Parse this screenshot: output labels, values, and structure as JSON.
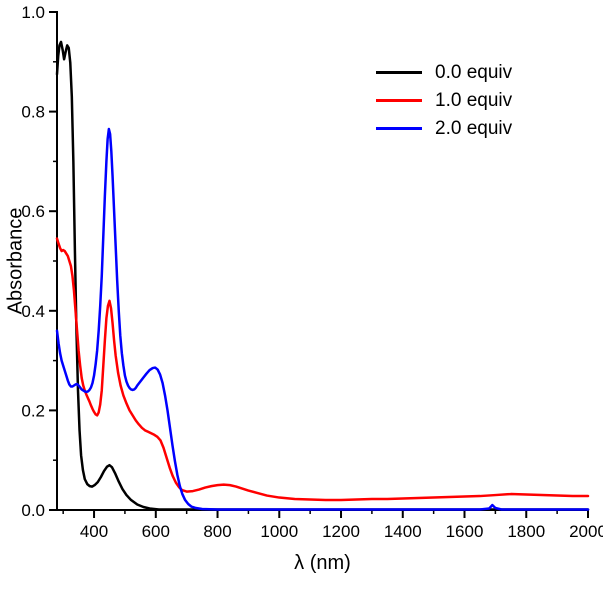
{
  "chart_data": {
    "type": "line",
    "title": "",
    "xlabel": "λ (nm)",
    "ylabel": "Absorbance",
    "xlim": [
      280,
      2000
    ],
    "ylim": [
      0.0,
      1.0
    ],
    "grid": false,
    "legend_position": "upper right",
    "x_ticks": {
      "values": [
        400,
        600,
        800,
        1000,
        1200,
        1400,
        1600,
        1800,
        2000
      ],
      "labels": [
        "400",
        "600",
        "800",
        "1000",
        "1200",
        "1400",
        "1600",
        "1800",
        "2000"
      ]
    },
    "x_minor_ticks": [
      300,
      500,
      700,
      900,
      1100,
      1300,
      1500,
      1700,
      1900
    ],
    "y_ticks": {
      "values": [
        0.0,
        0.2,
        0.4,
        0.6,
        0.8,
        1.0
      ],
      "labels": [
        "0.0",
        "0.2",
        "0.4",
        "0.6",
        "0.8",
        "1.0"
      ]
    },
    "y_minor_ticks": [
      0.1,
      0.3,
      0.5,
      0.7,
      0.9
    ],
    "series": [
      {
        "name": "0.0 equiv",
        "color": "#000000",
        "points": [
          [
            280,
            0.875
          ],
          [
            284,
            0.912
          ],
          [
            288,
            0.933
          ],
          [
            293,
            0.94
          ],
          [
            298,
            0.925
          ],
          [
            303,
            0.905
          ],
          [
            308,
            0.92
          ],
          [
            313,
            0.933
          ],
          [
            318,
            0.928
          ],
          [
            323,
            0.898
          ],
          [
            328,
            0.83
          ],
          [
            333,
            0.7
          ],
          [
            338,
            0.52
          ],
          [
            343,
            0.36
          ],
          [
            348,
            0.24
          ],
          [
            353,
            0.16
          ],
          [
            358,
            0.11
          ],
          [
            364,
            0.08
          ],
          [
            370,
            0.062
          ],
          [
            378,
            0.052
          ],
          [
            386,
            0.048
          ],
          [
            394,
            0.047
          ],
          [
            402,
            0.05
          ],
          [
            412,
            0.056
          ],
          [
            422,
            0.066
          ],
          [
            432,
            0.078
          ],
          [
            442,
            0.087
          ],
          [
            450,
            0.09
          ],
          [
            458,
            0.086
          ],
          [
            468,
            0.074
          ],
          [
            480,
            0.057
          ],
          [
            492,
            0.042
          ],
          [
            505,
            0.03
          ],
          [
            520,
            0.02
          ],
          [
            540,
            0.011
          ],
          [
            560,
            0.006
          ],
          [
            580,
            0.003
          ],
          [
            610,
            0.001
          ],
          [
            700,
            0.001
          ],
          [
            900,
            0.001
          ],
          [
            1200,
            0.001
          ],
          [
            1600,
            0.001
          ],
          [
            2000,
            0.001
          ]
        ]
      },
      {
        "name": "1.0 equiv",
        "color": "#ff0000",
        "points": [
          [
            280,
            0.545
          ],
          [
            285,
            0.535
          ],
          [
            290,
            0.526
          ],
          [
            295,
            0.52
          ],
          [
            300,
            0.522
          ],
          [
            305,
            0.52
          ],
          [
            310,
            0.515
          ],
          [
            315,
            0.51
          ],
          [
            320,
            0.5
          ],
          [
            325,
            0.49
          ],
          [
            330,
            0.47
          ],
          [
            335,
            0.44
          ],
          [
            340,
            0.4
          ],
          [
            345,
            0.36
          ],
          [
            350,
            0.32
          ],
          [
            355,
            0.29
          ],
          [
            360,
            0.265
          ],
          [
            365,
            0.25
          ],
          [
            370,
            0.24
          ],
          [
            375,
            0.232
          ],
          [
            380,
            0.225
          ],
          [
            385,
            0.218
          ],
          [
            390,
            0.21
          ],
          [
            395,
            0.203
          ],
          [
            400,
            0.197
          ],
          [
            405,
            0.192
          ],
          [
            410,
            0.19
          ],
          [
            415,
            0.196
          ],
          [
            420,
            0.212
          ],
          [
            425,
            0.24
          ],
          [
            430,
            0.29
          ],
          [
            435,
            0.34
          ],
          [
            440,
            0.385
          ],
          [
            445,
            0.41
          ],
          [
            450,
            0.42
          ],
          [
            455,
            0.405
          ],
          [
            460,
            0.375
          ],
          [
            465,
            0.34
          ],
          [
            470,
            0.31
          ],
          [
            478,
            0.275
          ],
          [
            486,
            0.25
          ],
          [
            495,
            0.23
          ],
          [
            505,
            0.214
          ],
          [
            515,
            0.2
          ],
          [
            525,
            0.19
          ],
          [
            535,
            0.18
          ],
          [
            545,
            0.172
          ],
          [
            555,
            0.165
          ],
          [
            565,
            0.16
          ],
          [
            575,
            0.157
          ],
          [
            585,
            0.154
          ],
          [
            595,
            0.151
          ],
          [
            605,
            0.147
          ],
          [
            615,
            0.14
          ],
          [
            625,
            0.125
          ],
          [
            635,
            0.105
          ],
          [
            645,
            0.085
          ],
          [
            655,
            0.068
          ],
          [
            665,
            0.055
          ],
          [
            675,
            0.046
          ],
          [
            685,
            0.04
          ],
          [
            700,
            0.037
          ],
          [
            720,
            0.038
          ],
          [
            740,
            0.041
          ],
          [
            760,
            0.045
          ],
          [
            780,
            0.048
          ],
          [
            800,
            0.05
          ],
          [
            820,
            0.051
          ],
          [
            840,
            0.05
          ],
          [
            860,
            0.047
          ],
          [
            880,
            0.043
          ],
          [
            900,
            0.039
          ],
          [
            930,
            0.034
          ],
          [
            960,
            0.029
          ],
          [
            1000,
            0.025
          ],
          [
            1050,
            0.022
          ],
          [
            1100,
            0.021
          ],
          [
            1150,
            0.02
          ],
          [
            1200,
            0.02
          ],
          [
            1250,
            0.021
          ],
          [
            1300,
            0.022
          ],
          [
            1350,
            0.022
          ],
          [
            1400,
            0.023
          ],
          [
            1450,
            0.024
          ],
          [
            1500,
            0.025
          ],
          [
            1550,
            0.026
          ],
          [
            1600,
            0.027
          ],
          [
            1650,
            0.028
          ],
          [
            1700,
            0.03
          ],
          [
            1750,
            0.032
          ],
          [
            1800,
            0.031
          ],
          [
            1850,
            0.03
          ],
          [
            1900,
            0.029
          ],
          [
            1950,
            0.028
          ],
          [
            2000,
            0.028
          ]
        ]
      },
      {
        "name": "2.0 equiv",
        "color": "#0000ff",
        "points": [
          [
            280,
            0.36
          ],
          [
            285,
            0.335
          ],
          [
            290,
            0.315
          ],
          [
            295,
            0.3
          ],
          [
            300,
            0.29
          ],
          [
            305,
            0.28
          ],
          [
            310,
            0.27
          ],
          [
            315,
            0.26
          ],
          [
            320,
            0.252
          ],
          [
            325,
            0.248
          ],
          [
            330,
            0.248
          ],
          [
            335,
            0.25
          ],
          [
            340,
            0.252
          ],
          [
            345,
            0.253
          ],
          [
            350,
            0.25
          ],
          [
            355,
            0.246
          ],
          [
            360,
            0.242
          ],
          [
            365,
            0.24
          ],
          [
            370,
            0.238
          ],
          [
            375,
            0.237
          ],
          [
            380,
            0.238
          ],
          [
            385,
            0.241
          ],
          [
            390,
            0.246
          ],
          [
            395,
            0.255
          ],
          [
            400,
            0.27
          ],
          [
            405,
            0.292
          ],
          [
            410,
            0.32
          ],
          [
            415,
            0.36
          ],
          [
            420,
            0.41
          ],
          [
            425,
            0.47
          ],
          [
            430,
            0.55
          ],
          [
            435,
            0.63
          ],
          [
            440,
            0.7
          ],
          [
            444,
            0.745
          ],
          [
            448,
            0.765
          ],
          [
            452,
            0.755
          ],
          [
            456,
            0.72
          ],
          [
            460,
            0.67
          ],
          [
            465,
            0.6
          ],
          [
            470,
            0.53
          ],
          [
            475,
            0.46
          ],
          [
            480,
            0.4
          ],
          [
            485,
            0.35
          ],
          [
            490,
            0.315
          ],
          [
            495,
            0.29
          ],
          [
            500,
            0.27
          ],
          [
            505,
            0.258
          ],
          [
            510,
            0.25
          ],
          [
            515,
            0.245
          ],
          [
            520,
            0.242
          ],
          [
            525,
            0.241
          ],
          [
            530,
            0.242
          ],
          [
            535,
            0.245
          ],
          [
            540,
            0.25
          ],
          [
            550,
            0.258
          ],
          [
            560,
            0.266
          ],
          [
            570,
            0.274
          ],
          [
            580,
            0.281
          ],
          [
            590,
            0.285
          ],
          [
            598,
            0.286
          ],
          [
            606,
            0.282
          ],
          [
            614,
            0.272
          ],
          [
            622,
            0.255
          ],
          [
            630,
            0.23
          ],
          [
            638,
            0.2
          ],
          [
            646,
            0.165
          ],
          [
            654,
            0.13
          ],
          [
            662,
            0.098
          ],
          [
            670,
            0.07
          ],
          [
            678,
            0.048
          ],
          [
            686,
            0.032
          ],
          [
            695,
            0.02
          ],
          [
            705,
            0.012
          ],
          [
            715,
            0.007
          ],
          [
            730,
            0.004
          ],
          [
            750,
            0.002
          ],
          [
            800,
            0.001
          ],
          [
            900,
            0.001
          ],
          [
            1100,
            0.001
          ],
          [
            1300,
            0.001
          ],
          [
            1500,
            0.001
          ],
          [
            1650,
            0.001
          ],
          [
            1680,
            0.003
          ],
          [
            1690,
            0.01
          ],
          [
            1700,
            0.004
          ],
          [
            1720,
            0.001
          ],
          [
            1800,
            0.001
          ],
          [
            2000,
            0.001
          ]
        ]
      }
    ]
  },
  "legend": {
    "items": [
      {
        "label": "0.0 equiv",
        "color": "#000000"
      },
      {
        "label": "1.0 equiv",
        "color": "#ff0000"
      },
      {
        "label": "2.0 equiv",
        "color": "#0000ff"
      }
    ]
  }
}
